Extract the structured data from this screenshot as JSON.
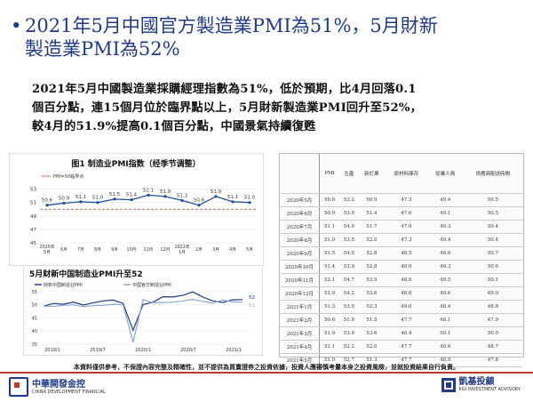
{
  "slide": {
    "bullet": "•",
    "title_line1": "2021年5月中國官方製造業PMI為51%，5月財新",
    "title_line2": "製造業PMI為52%",
    "body_line1": "2021年5月中國製造業採購經理指數為51%，低於預期，比4月回落0.1",
    "body_line2": "個百分點，連15個月位於臨界點以上，5月財新製造業PMI回升至52%，",
    "body_line3": "較4月的51.9%提高0.1個百分點，中國景氣持續復甦"
  },
  "chart_data": [
    {
      "type": "line",
      "title": "图1  制造业PMI指数（经季节调整）",
      "legend": "PMI=50临界点",
      "x": [
        "2020年5月",
        "6月",
        "7月",
        "8月",
        "9月",
        "10月",
        "11月",
        "12月",
        "2021年1月",
        "2月",
        "3月",
        "4月",
        "5月"
      ],
      "xticks": [
        "2020年\n5月",
        "6月",
        "7月",
        "8月",
        "9月",
        "10月",
        "11月",
        "12月",
        "2021年\n1月",
        "2月",
        "3月",
        "4月",
        "5月"
      ],
      "values": [
        50.6,
        50.9,
        51.1,
        51.0,
        51.5,
        51.4,
        52.1,
        51.9,
        51.3,
        50.6,
        51.9,
        51.1,
        51.0
      ],
      "data_labels": [
        "50.6",
        "50.9",
        "51.1",
        "51.0",
        "51.5",
        "51.4",
        "52.1",
        "51.9",
        "51.3",
        "50.6",
        "51.9",
        "51.1",
        "51.0"
      ],
      "ylim": [
        45,
        54
      ],
      "yticks": [
        "45",
        "47",
        "49",
        "51",
        "53"
      ],
      "threshold": 50,
      "colors": {
        "line": "#1f4e9c",
        "threshold": "#c0392b"
      }
    },
    {
      "type": "line",
      "title": "5月财新中国制造业PMI升至52",
      "series": [
        {
          "name": "财新中国制造业PMI",
          "color": "#1f3a8a"
        },
        {
          "name": "中国官方制造业PMI",
          "color": "#8aa6d6"
        }
      ],
      "xticks": [
        "2019/1",
        "2019/7",
        "2020/1",
        "2020/7",
        "2021/1"
      ],
      "yticks": [
        "35",
        "40",
        "45",
        "50",
        "55"
      ],
      "ylim": [
        35,
        56
      ],
      "end_labels": [
        "52",
        "51"
      ]
    }
  ],
  "table": {
    "headers": [
      "PMI",
      "生產",
      "新訂單",
      "原材料庫存",
      "從業人員",
      "供應商配送時間"
    ],
    "rows": [
      [
        "2020年5月",
        "50.6",
        "53.2",
        "50.9",
        "47.3",
        "49.4",
        "50.5"
      ],
      [
        "2020年6月",
        "50.9",
        "53.9",
        "51.4",
        "47.6",
        "49.1",
        "50.5"
      ],
      [
        "2020年7月",
        "51.1",
        "54.0",
        "51.7",
        "47.9",
        "49.3",
        "50.4"
      ],
      [
        "2020年8月",
        "51.0",
        "53.5",
        "52.0",
        "47.3",
        "49.4",
        "50.4"
      ],
      [
        "2020年9月",
        "51.5",
        "54.0",
        "52.8",
        "48.5",
        "49.6",
        "50.7"
      ],
      [
        "2020年10月",
        "51.4",
        "53.9",
        "52.8",
        "48.0",
        "49.3",
        "50.6"
      ],
      [
        "2020年11月",
        "52.1",
        "54.7",
        "53.9",
        "48.6",
        "49.5",
        "50.1"
      ],
      [
        "2020年12月",
        "51.9",
        "54.2",
        "53.6",
        "48.6",
        "49.6",
        "49.9"
      ],
      [
        "2021年1月",
        "51.3",
        "53.5",
        "52.3",
        "49.0",
        "48.4",
        "48.8"
      ],
      [
        "2021年2月",
        "50.6",
        "51.9",
        "51.5",
        "47.7",
        "48.1",
        "47.9"
      ],
      [
        "2021年3月",
        "51.9",
        "53.9",
        "53.6",
        "48.4",
        "50.1",
        "50.0"
      ],
      [
        "2021年4月",
        "51.1",
        "52.2",
        "52.0",
        "47.7",
        "49.6",
        "48.7"
      ],
      [
        "2021年5月",
        "51.0",
        "52.7",
        "51.3",
        "47.7",
        "48.9",
        "47.6"
      ]
    ]
  },
  "disclaimer": "本資料僅供參考，不保證內容完整及精確性，並不提供為買賣證券之投資依據，投資人應審慎考量本身之投資風險，並就投資結果自行負責。",
  "footer": {
    "left_name": "中華開發金控",
    "left_sub": "CHINA DEVELOPMENT FINANCIAL",
    "right_name": "凱基投顧",
    "right_sub": "KGI INVESTMENT ADVISORY"
  }
}
